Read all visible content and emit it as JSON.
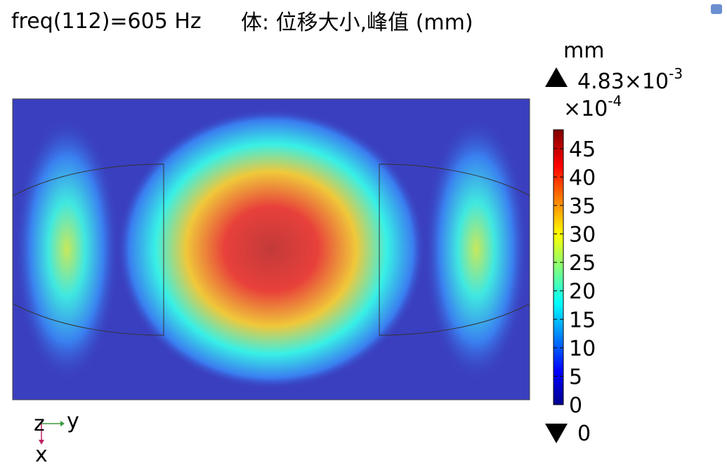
{
  "header": {
    "frequency": "freq(112)=605 Hz",
    "expression": "体: 位移大小,峰值 (mm)"
  },
  "legend": {
    "unit": "mm",
    "max_mantissa": "4.83×10",
    "max_exponent": "-3",
    "scale_base": "×10",
    "scale_exponent": "-4",
    "min": "0",
    "clim": [
      0,
      48.3
    ],
    "ticks": [
      0,
      5,
      10,
      15,
      20,
      25,
      30,
      35,
      40,
      45
    ]
  },
  "axes": {
    "z": "z",
    "y": "y",
    "x": "x"
  }
}
